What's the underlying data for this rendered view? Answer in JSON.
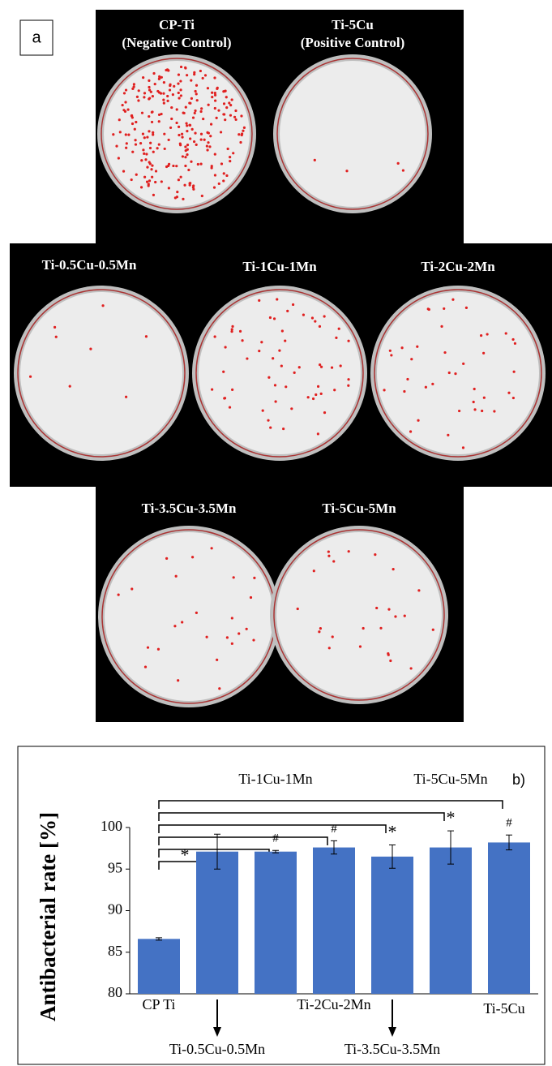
{
  "panel_a": {
    "label": "a",
    "plates": [
      {
        "lines": [
          "CP-Ti",
          "(Negative Control)"
        ]
      },
      {
        "lines": [
          "Ti-5Cu",
          "(Positive Control)"
        ]
      },
      {
        "lines": [
          "Ti-0.5Cu-0.5Mn"
        ]
      },
      {
        "lines": [
          "Ti-1Cu-1Mn"
        ]
      },
      {
        "lines": [
          "Ti-2Cu-2Mn"
        ]
      },
      {
        "lines": [
          "Ti-3.5Cu-3.5Mn"
        ]
      },
      {
        "lines": [
          "Ti-5Cu-5Mn"
        ]
      }
    ]
  },
  "chart_data": {
    "type": "bar",
    "panel_label": "b)",
    "y_label": "Antibacterial rate [%]",
    "categories": [
      "CP Ti",
      "Ti-0.5Cu-0.5Mn",
      "Ti-1Cu-1Mn",
      "Ti-2Cu-2Mn",
      "Ti-3.5Cu-3.5Mn",
      "Ti-5Cu-5Mn",
      "Ti-5Cu"
    ],
    "values": [
      86.6,
      97.1,
      97.1,
      97.6,
      96.5,
      97.6,
      98.2
    ],
    "errors": [
      0.15,
      2.1,
      0.15,
      0.8,
      1.4,
      2.0,
      0.9
    ],
    "significance": [
      null,
      "*",
      "#",
      "#",
      "*",
      "*",
      "#"
    ],
    "color": "#4472c4",
    "ylim": [
      80,
      100
    ],
    "yticks": [
      80,
      85,
      90,
      95,
      100
    ]
  }
}
